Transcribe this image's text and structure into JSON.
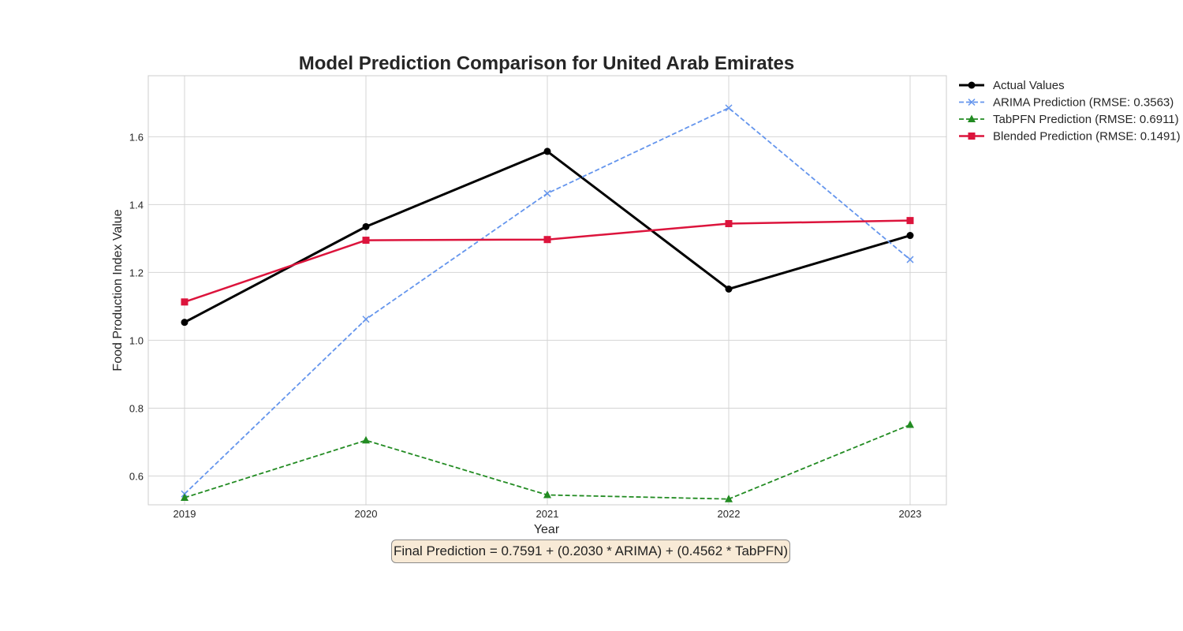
{
  "chart_data": {
    "type": "line",
    "title": "Model Prediction Comparison for United Arab Emirates",
    "xlabel": "Year",
    "ylabel": "Food Production Index Value",
    "categories": [
      "2019",
      "2020",
      "2021",
      "2022",
      "2023"
    ],
    "ylim": [
      0.515,
      1.78
    ],
    "yticks": [
      0.6,
      0.8,
      1.0,
      1.2,
      1.4,
      1.6
    ],
    "ytick_labels": [
      "0.6",
      "0.8",
      "1.0",
      "1.2",
      "1.4",
      "1.6"
    ],
    "grid": true,
    "legend_position": "outside-top-right",
    "series": [
      {
        "name": "Actual Values",
        "values": [
          1.053,
          1.335,
          1.557,
          1.151,
          1.309
        ],
        "color": "#000000",
        "dash": "solid",
        "marker": "circle"
      },
      {
        "name": "ARIMA Prediction (RMSE: 0.3563)",
        "values": [
          0.547,
          1.062,
          1.433,
          1.685,
          1.238
        ],
        "color": "#6495ed",
        "dash": "dashed",
        "marker": "x"
      },
      {
        "name": "TabPFN Prediction (RMSE: 0.6911)",
        "values": [
          0.536,
          0.705,
          0.544,
          0.532,
          0.751
        ],
        "color": "#228b22",
        "dash": "dashed",
        "marker": "triangle"
      },
      {
        "name": "Blended Prediction (RMSE: 0.1491)",
        "values": [
          1.113,
          1.295,
          1.297,
          1.344,
          1.353
        ],
        "color": "#dc143c",
        "dash": "solid",
        "marker": "square"
      }
    ],
    "annotation": "Final Prediction = 0.7591 + (0.2030 * ARIMA) + (0.4562 * TabPFN)"
  }
}
